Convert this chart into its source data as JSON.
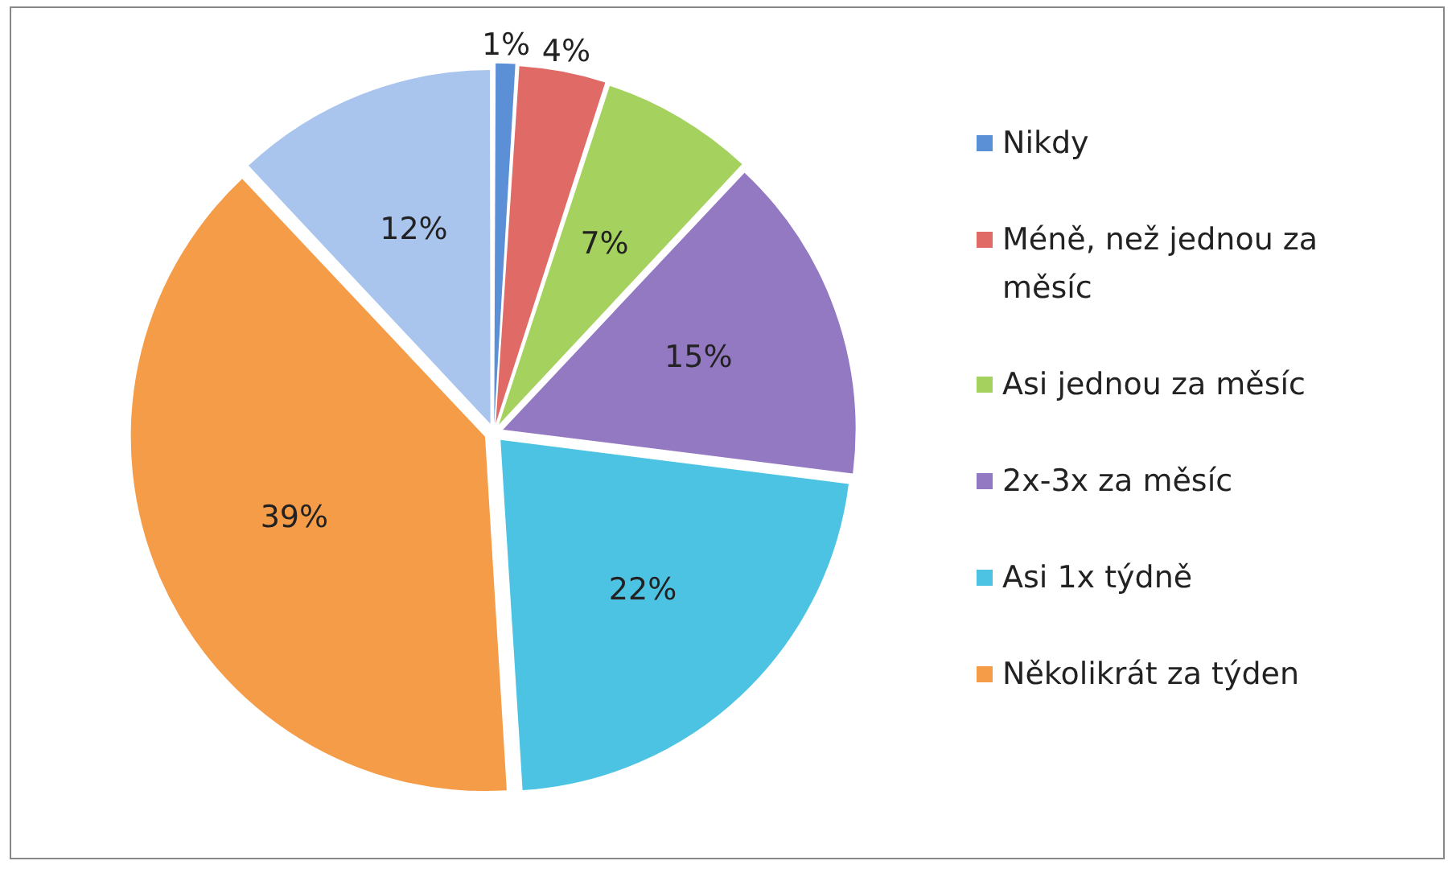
{
  "chart_data": {
    "type": "pie",
    "categories": [
      "Nikdy",
      "Méně, než jednou za měsíc",
      "Asi jednou za měsíc",
      "2x-3x za měsíc",
      "Asi 1x týdně",
      "Několikrát za týden",
      null
    ],
    "values": [
      1,
      4,
      7,
      15,
      22,
      39,
      12
    ],
    "colors": [
      "#5b8fd6",
      "#e06a66",
      "#a5d15e",
      "#9378c2",
      "#4cc3e3",
      "#f59c48",
      "#a9c5ee"
    ],
    "value_labels": [
      "1%",
      "4%",
      "7%",
      "15%",
      "22%",
      "39%",
      "12%"
    ],
    "legend": "right"
  }
}
